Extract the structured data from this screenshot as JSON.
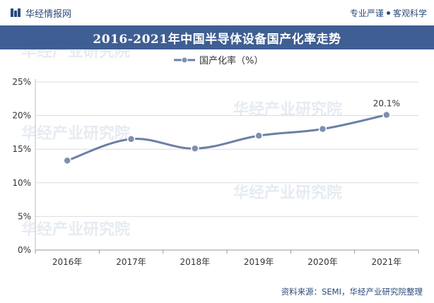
{
  "header": {
    "brand": "华经情报网",
    "tagline_left": "专业严谨",
    "tagline_right": "客观科学"
  },
  "watermark": "华经产业研究院",
  "source_text": "资料来源：SEMI，华经产业研究院整理",
  "colors": {
    "title_bg": "#3f5e93",
    "line": "#6b7fa6",
    "marker": "#7f8fae",
    "brand": "#2b4a7a"
  },
  "chart_data": {
    "type": "line",
    "title": "2016-2021年中国半导体设备国产化率走势",
    "categories": [
      "2016年",
      "2017年",
      "2018年",
      "2019年",
      "2020年",
      "2021年"
    ],
    "series": [
      {
        "name": "国产化率（%）",
        "values": [
          13.3,
          16.5,
          15.1,
          17.0,
          18.0,
          20.1
        ]
      }
    ],
    "y_ticks": [
      "0%",
      "5%",
      "10%",
      "15%",
      "20%",
      "25%"
    ],
    "ylim": [
      0,
      25
    ],
    "data_labels": [
      {
        "index": 5,
        "text": "20.1%"
      }
    ],
    "grid": true,
    "legend": "top-center"
  }
}
